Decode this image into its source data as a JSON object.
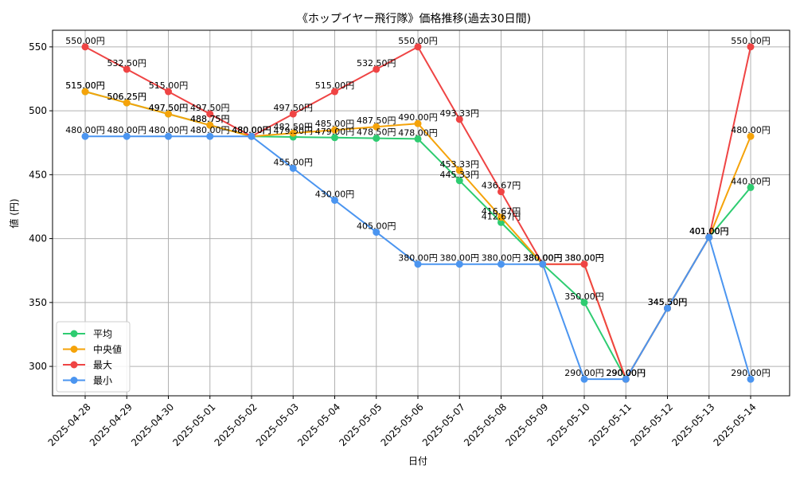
{
  "chart_data": {
    "type": "line",
    "title": "《ホップイヤー飛行隊》価格推移(過去30日間)",
    "xlabel": "日付",
    "ylabel": "値 (円)",
    "ylim": [
      277,
      563
    ],
    "yticks": [
      300,
      350,
      400,
      450,
      500,
      550
    ],
    "grid": true,
    "legend_placement": "lower-left",
    "label_suffix": "円",
    "x": [
      "2025-04-28",
      "2025-04-29",
      "2025-04-30",
      "2025-05-01",
      "2025-05-02",
      "2025-05-03",
      "2025-05-04",
      "2025-05-05",
      "2025-05-06",
      "2025-05-07",
      "2025-05-08",
      "2025-05-09",
      "2025-05-10",
      "2025-05-11",
      "2025-05-12",
      "2025-05-13",
      "2025-05-14"
    ],
    "series": [
      {
        "name": "平均",
        "color": "#2ecc71",
        "values": [
          515.0,
          506.25,
          497.5,
          488.75,
          480.0,
          479.5,
          479.0,
          478.5,
          478.0,
          445.33,
          412.67,
          380.0,
          350.0,
          290.0,
          345.5,
          401.0,
          440.0
        ]
      },
      {
        "name": "中央値",
        "color": "#f5a30a",
        "values": [
          515.0,
          506.25,
          497.5,
          488.75,
          480.0,
          482.5,
          485.0,
          487.5,
          490.0,
          453.33,
          416.67,
          380.0,
          380.0,
          290.0,
          345.5,
          401.0,
          480.0
        ]
      },
      {
        "name": "最大",
        "color": "#ef4444",
        "values": [
          550.0,
          532.5,
          515.0,
          497.5,
          480.0,
          497.5,
          515.0,
          532.5,
          550.0,
          493.33,
          436.67,
          380.0,
          380.0,
          290.0,
          345.5,
          401.0,
          550.0
        ]
      },
      {
        "name": "最小",
        "color": "#4b95f0",
        "values": [
          480.0,
          480.0,
          480.0,
          480.0,
          480.0,
          455.0,
          430.0,
          405.0,
          380.0,
          380.0,
          380.0,
          380.0,
          290.0,
          290.0,
          345.5,
          401.0,
          290.0
        ]
      }
    ]
  }
}
